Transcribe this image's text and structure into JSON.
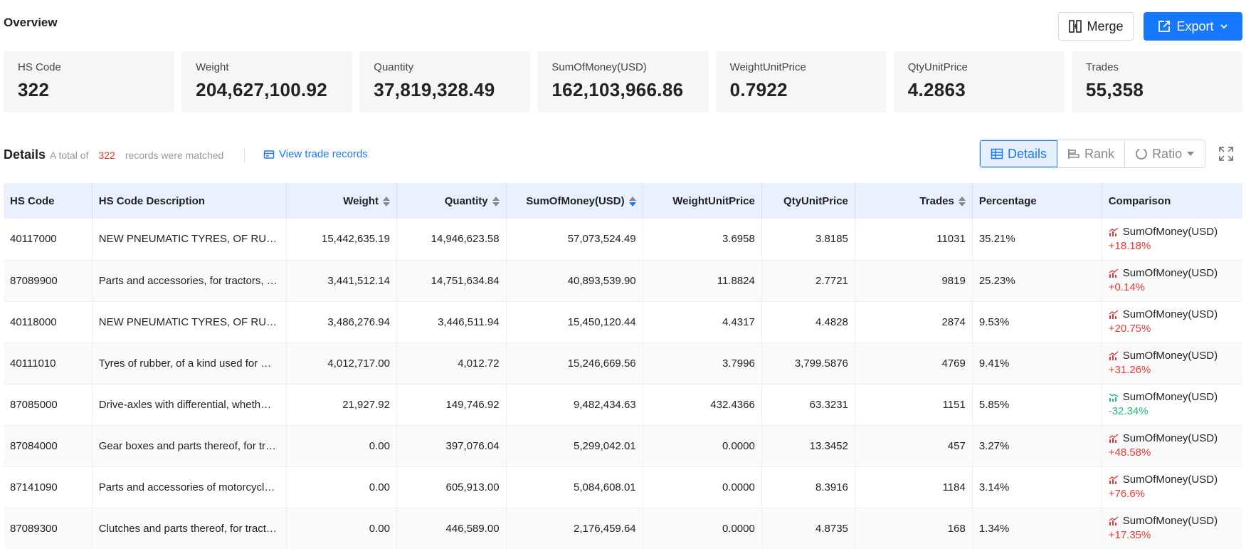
{
  "header": {
    "title": "Overview",
    "merge_label": "Merge",
    "export_label": "Export"
  },
  "cards": [
    {
      "label": "HS Code",
      "value": "322"
    },
    {
      "label": "Weight",
      "value": "204,627,100.92"
    },
    {
      "label": "Quantity",
      "value": "37,819,328.49"
    },
    {
      "label": "SumOfMoney(USD)",
      "value": "162,103,966.86"
    },
    {
      "label": "WeightUnitPrice",
      "value": "0.7922"
    },
    {
      "label": "QtyUnitPrice",
      "value": "4.2863"
    },
    {
      "label": "Trades",
      "value": "55,358"
    }
  ],
  "details": {
    "title": "Details",
    "info_prefix": "A total of",
    "count": "322",
    "info_suffix": "records were matched",
    "view_link": "View trade records",
    "tabs": [
      "Details",
      "Rank",
      "Ratio"
    ],
    "active_tab": "Details"
  },
  "colors": {
    "accent": "#1677ff",
    "up": "#e53935",
    "down": "#2bb673",
    "header_bg": "#e9f0ff"
  },
  "table": {
    "columns": [
      "HS Code",
      "HS Code Description",
      "Weight",
      "Quantity",
      "SumOfMoney(USD)",
      "WeightUnitPrice",
      "QtyUnitPrice",
      "Trades",
      "Percentage",
      "Comparison"
    ],
    "rows": [
      {
        "code": "40117000",
        "desc": "NEW PNEUMATIC TYRES, OF RUBB…",
        "weight": "15,442,635.19",
        "qty": "14,946,623.58",
        "money": "57,073,524.49",
        "wup": "3.6958",
        "qup": "3.8185",
        "trades": "11031",
        "pct": "35.21%",
        "cmp_label": "SumOfMoney(USD)",
        "cmp_val": "+18.18%",
        "trend": "up"
      },
      {
        "code": "87089900",
        "desc": "Parts and accessories, for tractors, …",
        "weight": "3,441,512.14",
        "qty": "14,751,634.84",
        "money": "40,893,539.90",
        "wup": "11.8824",
        "qup": "2.7721",
        "trades": "9819",
        "pct": "25.23%",
        "cmp_label": "SumOfMoney(USD)",
        "cmp_val": "+0.14%",
        "trend": "up"
      },
      {
        "code": "40118000",
        "desc": "NEW PNEUMATIC TYRES, OF RUBB…",
        "weight": "3,486,276.94",
        "qty": "3,446,511.94",
        "money": "15,450,120.44",
        "wup": "4.4317",
        "qup": "4.4828",
        "trades": "2874",
        "pct": "9.53%",
        "cmp_label": "SumOfMoney(USD)",
        "cmp_val": "+20.75%",
        "trend": "up"
      },
      {
        "code": "40111010",
        "desc": "Tyres of rubber, of a kind used for …",
        "weight": "4,012,717.00",
        "qty": "4,012.72",
        "money": "15,246,669.56",
        "wup": "3.7996",
        "qup": "3,799.5876",
        "trades": "4769",
        "pct": "9.41%",
        "cmp_label": "SumOfMoney(USD)",
        "cmp_val": "+31.26%",
        "trend": "up"
      },
      {
        "code": "87085000",
        "desc": "Drive-axles with differential, wheth…",
        "weight": "21,927.92",
        "qty": "149,746.92",
        "money": "9,482,434.63",
        "wup": "432.4366",
        "qup": "63.3231",
        "trades": "1151",
        "pct": "5.85%",
        "cmp_label": "SumOfMoney(USD)",
        "cmp_val": "-32.34%",
        "trend": "down"
      },
      {
        "code": "87084000",
        "desc": "Gear boxes and parts thereof, for tr…",
        "weight": "0.00",
        "qty": "397,076.04",
        "money": "5,299,042.01",
        "wup": "0.0000",
        "qup": "13.3452",
        "trades": "457",
        "pct": "3.27%",
        "cmp_label": "SumOfMoney(USD)",
        "cmp_val": "+48.58%",
        "trend": "up"
      },
      {
        "code": "87141090",
        "desc": "Parts and accessories of motorcycl…",
        "weight": "0.00",
        "qty": "605,913.00",
        "money": "5,084,608.01",
        "wup": "0.0000",
        "qup": "8.3916",
        "trades": "1184",
        "pct": "3.14%",
        "cmp_label": "SumOfMoney(USD)",
        "cmp_val": "+76.6%",
        "trend": "up"
      },
      {
        "code": "87089300",
        "desc": "Clutches and parts thereof, for tract…",
        "weight": "0.00",
        "qty": "446,589.00",
        "money": "2,176,459.64",
        "wup": "0.0000",
        "qup": "4.8735",
        "trades": "168",
        "pct": "1.34%",
        "cmp_label": "SumOfMoney(USD)",
        "cmp_val": "+17.35%",
        "trend": "up"
      }
    ]
  }
}
